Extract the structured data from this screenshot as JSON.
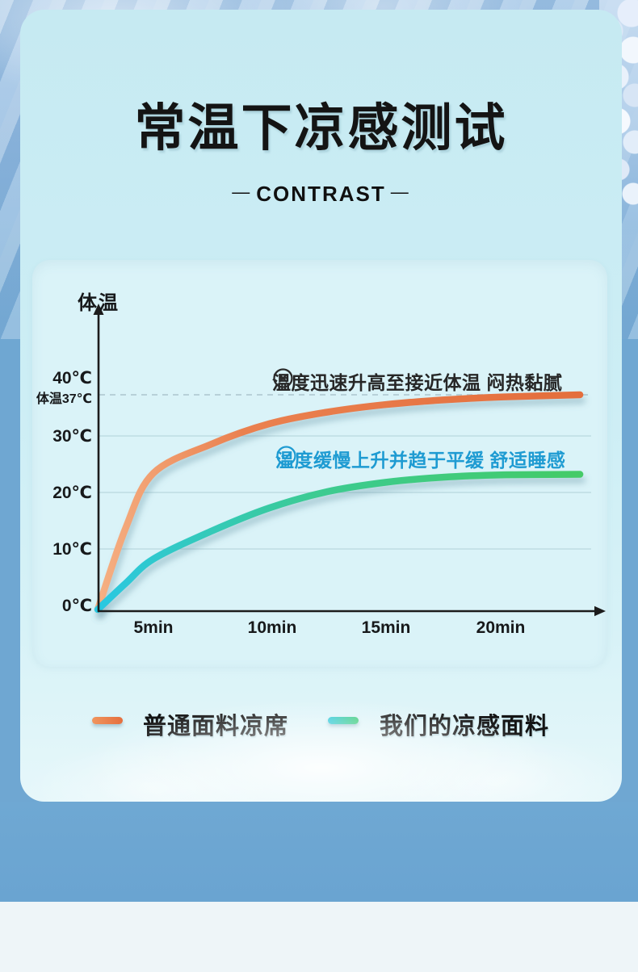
{
  "header": {
    "title": "常温下凉感测试",
    "subtitle": "CONTRAST",
    "subtitle_dash": "—"
  },
  "chart_data": {
    "type": "line",
    "title": "常温下凉感测试",
    "y_axis_label": "体温",
    "y_ticks": [
      "40℃",
      "体温37℃",
      "30℃",
      "20℃",
      "10℃",
      "0℃"
    ],
    "x_ticks": [
      "5min",
      "10min",
      "15min",
      "20min"
    ],
    "x_unit": "min",
    "y_unit": "℃",
    "ylim": [
      0,
      43
    ],
    "body_temp_reference": 37,
    "grid": "horizontal",
    "legend_position": "bottom",
    "x": [
      0,
      2.5,
      5,
      7.5,
      10,
      12.5,
      15,
      17.5,
      20,
      23.4
    ],
    "series": [
      {
        "name": "普通面料凉席",
        "color": "#E8764A",
        "values": [
          0,
          14,
          23.5,
          28.5,
          32,
          34,
          35.3,
          36.1,
          36.6,
          37
        ]
      },
      {
        "name": "我们的凉感面料",
        "color": "#3CCB85",
        "color_start": "#2BC8E2",
        "values": [
          0,
          4.5,
          8.7,
          13.5,
          17.5,
          20.3,
          21.9,
          22.8,
          23.2,
          23.3
        ]
      }
    ],
    "annotations": [
      {
        "icon": "x-circle",
        "color": "#2B2B2B",
        "text": "温度迅速升高至接近体温 闷热黏腻"
      },
      {
        "icon": "check-circle",
        "color": "#1E9BD2",
        "text": "温度缓慢上升并趋于平缓 舒适睡感"
      }
    ]
  },
  "legend": {
    "items": [
      {
        "label": "普通面料凉席",
        "color": "#E8764A"
      },
      {
        "label": "我们的凉感面料",
        "color": "#3CCB85"
      }
    ]
  }
}
